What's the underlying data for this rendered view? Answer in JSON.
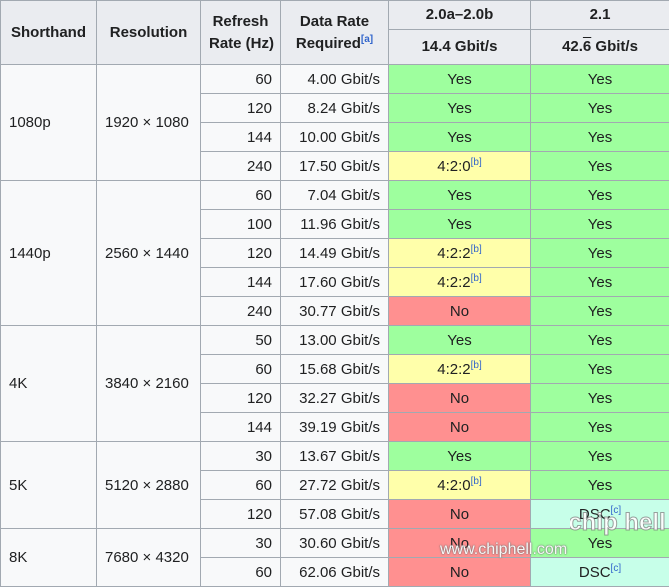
{
  "header": {
    "shorthand": "Shorthand",
    "resolution": "Resolution",
    "refresh_line1": "Refresh",
    "refresh_line2": "Rate (Hz)",
    "datarate_line1": "Data Rate",
    "datarate_line2": "Required",
    "datarate_note": "[a]",
    "v20_label": "2.0a–2.0b",
    "v20_rate": "14.4 Gbit/s",
    "v21_label": "2.1",
    "v21_rate_prefix": "42.",
    "v21_rate_digit": "6",
    "v21_rate_suffix": " Gbit/s"
  },
  "groups": [
    {
      "shorthand": "1080p",
      "resolution": "1920 × 1080",
      "rows": [
        {
          "hz": "60",
          "rate": "4.00 Gbit/s",
          "v20": {
            "text": "Yes",
            "note": "",
            "status": "yes"
          },
          "v21": {
            "text": "Yes",
            "note": "",
            "status": "yes"
          }
        },
        {
          "hz": "120",
          "rate": "8.24 Gbit/s",
          "v20": {
            "text": "Yes",
            "note": "",
            "status": "yes"
          },
          "v21": {
            "text": "Yes",
            "note": "",
            "status": "yes"
          }
        },
        {
          "hz": "144",
          "rate": "10.00 Gbit/s",
          "v20": {
            "text": "Yes",
            "note": "",
            "status": "yes"
          },
          "v21": {
            "text": "Yes",
            "note": "",
            "status": "yes"
          }
        },
        {
          "hz": "240",
          "rate": "17.50 Gbit/s",
          "v20": {
            "text": "4:2:0",
            "note": "[b]",
            "status": "partial"
          },
          "v21": {
            "text": "Yes",
            "note": "",
            "status": "yes"
          }
        }
      ]
    },
    {
      "shorthand": "1440p",
      "resolution": "2560 × 1440",
      "rows": [
        {
          "hz": "60",
          "rate": "7.04 Gbit/s",
          "v20": {
            "text": "Yes",
            "note": "",
            "status": "yes"
          },
          "v21": {
            "text": "Yes",
            "note": "",
            "status": "yes"
          }
        },
        {
          "hz": "100",
          "rate": "11.96 Gbit/s",
          "v20": {
            "text": "Yes",
            "note": "",
            "status": "yes"
          },
          "v21": {
            "text": "Yes",
            "note": "",
            "status": "yes"
          }
        },
        {
          "hz": "120",
          "rate": "14.49 Gbit/s",
          "v20": {
            "text": "4:2:2",
            "note": "[b]",
            "status": "partial"
          },
          "v21": {
            "text": "Yes",
            "note": "",
            "status": "yes"
          }
        },
        {
          "hz": "144",
          "rate": "17.60 Gbit/s",
          "v20": {
            "text": "4:2:2",
            "note": "[b]",
            "status": "partial"
          },
          "v21": {
            "text": "Yes",
            "note": "",
            "status": "yes"
          }
        },
        {
          "hz": "240",
          "rate": "30.77 Gbit/s",
          "v20": {
            "text": "No",
            "note": "",
            "status": "no"
          },
          "v21": {
            "text": "Yes",
            "note": "",
            "status": "yes"
          }
        }
      ]
    },
    {
      "shorthand": "4K",
      "resolution": "3840 × 2160",
      "rows": [
        {
          "hz": "50",
          "rate": "13.00 Gbit/s",
          "v20": {
            "text": "Yes",
            "note": "",
            "status": "yes"
          },
          "v21": {
            "text": "Yes",
            "note": "",
            "status": "yes"
          }
        },
        {
          "hz": "60",
          "rate": "15.68 Gbit/s",
          "v20": {
            "text": "4:2:2",
            "note": "[b]",
            "status": "partial"
          },
          "v21": {
            "text": "Yes",
            "note": "",
            "status": "yes"
          }
        },
        {
          "hz": "120",
          "rate": "32.27 Gbit/s",
          "v20": {
            "text": "No",
            "note": "",
            "status": "no"
          },
          "v21": {
            "text": "Yes",
            "note": "",
            "status": "yes"
          }
        },
        {
          "hz": "144",
          "rate": "39.19 Gbit/s",
          "v20": {
            "text": "No",
            "note": "",
            "status": "no"
          },
          "v21": {
            "text": "Yes",
            "note": "",
            "status": "yes"
          }
        }
      ]
    },
    {
      "shorthand": "5K",
      "resolution": "5120 × 2880",
      "rows": [
        {
          "hz": "30",
          "rate": "13.67 Gbit/s",
          "v20": {
            "text": "Yes",
            "note": "",
            "status": "yes"
          },
          "v21": {
            "text": "Yes",
            "note": "",
            "status": "yes"
          }
        },
        {
          "hz": "60",
          "rate": "27.72 Gbit/s",
          "v20": {
            "text": "4:2:0",
            "note": "[b]",
            "status": "partial"
          },
          "v21": {
            "text": "Yes",
            "note": "",
            "status": "yes"
          }
        },
        {
          "hz": "120",
          "rate": "57.08 Gbit/s",
          "v20": {
            "text": "No",
            "note": "",
            "status": "no"
          },
          "v21": {
            "text": "DSC",
            "note": "[c]",
            "status": "dsc"
          }
        }
      ]
    },
    {
      "shorthand": "8K",
      "resolution": "7680 × 4320",
      "rows": [
        {
          "hz": "30",
          "rate": "30.60 Gbit/s",
          "v20": {
            "text": "No",
            "note": "",
            "status": "no"
          },
          "v21": {
            "text": "Yes",
            "note": "",
            "status": "yes"
          }
        },
        {
          "hz": "60",
          "rate": "62.06 Gbit/s",
          "v20": {
            "text": "No",
            "note": "",
            "status": "no"
          },
          "v21": {
            "text": "DSC",
            "note": "[c]",
            "status": "dsc"
          }
        }
      ]
    }
  ],
  "status_colors": {
    "yes": "#9eff9e",
    "no": "#ff9090",
    "partial": "#ffffaa",
    "dsc": "#c7ffe9",
    "header": "#eaecf0",
    "cell": "#f8f9fa"
  },
  "watermark": {
    "site": "www.chiphell.com",
    "logo": "chip hell"
  }
}
